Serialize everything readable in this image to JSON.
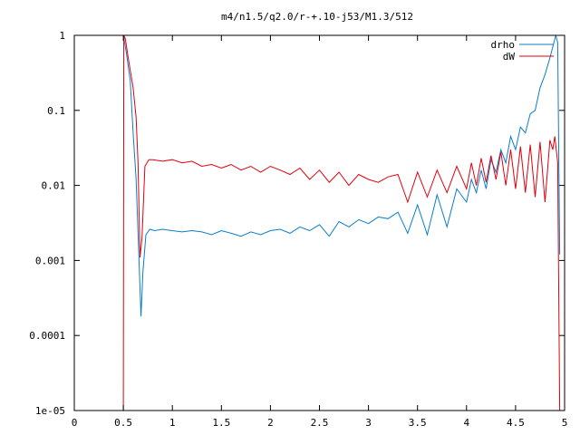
{
  "chart_data": {
    "type": "line",
    "title": "m4/n1.5/q2.0/r-+.10-j53/M1.3/512",
    "xlabel": "",
    "ylabel": "",
    "xlim": [
      0,
      5
    ],
    "ylim": [
      1e-05,
      1
    ],
    "y_scale": "log",
    "grid": false,
    "legend_position": "top-right",
    "x_ticks": [
      {
        "value": 0,
        "label": "0"
      },
      {
        "value": 0.5,
        "label": "0.5"
      },
      {
        "value": 1,
        "label": "1"
      },
      {
        "value": 1.5,
        "label": "1.5"
      },
      {
        "value": 2,
        "label": "2"
      },
      {
        "value": 2.5,
        "label": "2.5"
      },
      {
        "value": 3,
        "label": "3"
      },
      {
        "value": 3.5,
        "label": "3.5"
      },
      {
        "value": 4,
        "label": "4"
      },
      {
        "value": 4.5,
        "label": "4.5"
      },
      {
        "value": 5,
        "label": "5"
      }
    ],
    "y_ticks": [
      {
        "value": 1,
        "label": "1"
      },
      {
        "value": 0.1,
        "label": "0.1"
      },
      {
        "value": 0.01,
        "label": "0.01"
      },
      {
        "value": 0.001,
        "label": "0.001"
      },
      {
        "value": 0.0001,
        "label": "0.0001"
      },
      {
        "value": 1e-05,
        "label": "1e-05"
      }
    ],
    "series": [
      {
        "name": "drho",
        "color": "#0c7dc8",
        "x": [
          0.5,
          0.53,
          0.57,
          0.6,
          0.63,
          0.66,
          0.68,
          0.7,
          0.73,
          0.77,
          0.82,
          0.9,
          1.0,
          1.1,
          1.2,
          1.3,
          1.4,
          1.5,
          1.6,
          1.7,
          1.8,
          1.9,
          2.0,
          2.1,
          2.2,
          2.3,
          2.4,
          2.5,
          2.6,
          2.7,
          2.8,
          2.9,
          3.0,
          3.1,
          3.2,
          3.3,
          3.4,
          3.5,
          3.6,
          3.7,
          3.8,
          3.9,
          4.0,
          4.05,
          4.1,
          4.15,
          4.2,
          4.25,
          4.3,
          4.35,
          4.4,
          4.45,
          4.5,
          4.55,
          4.6,
          4.65,
          4.7,
          4.75,
          4.8,
          4.85,
          4.88,
          4.91,
          4.93,
          4.95
        ],
        "y": [
          1.0,
          0.6,
          0.25,
          0.05,
          0.012,
          0.001,
          0.00018,
          0.0007,
          0.0022,
          0.0026,
          0.0025,
          0.0026,
          0.0025,
          0.0024,
          0.0025,
          0.0024,
          0.0022,
          0.0025,
          0.0023,
          0.0021,
          0.0024,
          0.0022,
          0.0025,
          0.0026,
          0.0023,
          0.0028,
          0.0025,
          0.003,
          0.0021,
          0.0033,
          0.0028,
          0.0035,
          0.0031,
          0.0038,
          0.0036,
          0.0044,
          0.0023,
          0.0055,
          0.0022,
          0.0075,
          0.0028,
          0.009,
          0.006,
          0.012,
          0.008,
          0.016,
          0.009,
          0.022,
          0.015,
          0.03,
          0.02,
          0.045,
          0.03,
          0.06,
          0.05,
          0.09,
          0.1,
          0.2,
          0.3,
          0.5,
          0.7,
          1.0,
          0.8,
          0.0012
        ]
      },
      {
        "name": "dW",
        "color": "#e0000e",
        "x": [
          0.5,
          0.505,
          0.52,
          0.55,
          0.6,
          0.63,
          0.65,
          0.67,
          0.69,
          0.72,
          0.76,
          0.8,
          0.9,
          1.0,
          1.1,
          1.2,
          1.3,
          1.4,
          1.5,
          1.6,
          1.7,
          1.8,
          1.9,
          2.0,
          2.1,
          2.2,
          2.3,
          2.4,
          2.5,
          2.6,
          2.7,
          2.8,
          2.9,
          3.0,
          3.1,
          3.2,
          3.3,
          3.4,
          3.5,
          3.6,
          3.7,
          3.8,
          3.9,
          4.0,
          4.05,
          4.1,
          4.15,
          4.2,
          4.25,
          4.3,
          4.35,
          4.4,
          4.45,
          4.5,
          4.55,
          4.6,
          4.65,
          4.7,
          4.75,
          4.8,
          4.85,
          4.88,
          4.9,
          4.93,
          4.95
        ],
        "y": [
          1e-05,
          1.0,
          0.9,
          0.5,
          0.2,
          0.08,
          0.02,
          0.0011,
          0.002,
          0.018,
          0.022,
          0.022,
          0.021,
          0.022,
          0.02,
          0.021,
          0.018,
          0.019,
          0.017,
          0.019,
          0.016,
          0.018,
          0.015,
          0.018,
          0.016,
          0.014,
          0.017,
          0.012,
          0.016,
          0.011,
          0.015,
          0.01,
          0.014,
          0.012,
          0.011,
          0.013,
          0.014,
          0.006,
          0.015,
          0.007,
          0.016,
          0.008,
          0.018,
          0.009,
          0.02,
          0.01,
          0.023,
          0.011,
          0.025,
          0.012,
          0.028,
          0.01,
          0.03,
          0.009,
          0.033,
          0.008,
          0.035,
          0.007,
          0.038,
          0.006,
          0.04,
          0.03,
          0.045,
          0.02,
          1e-05
        ]
      }
    ]
  }
}
